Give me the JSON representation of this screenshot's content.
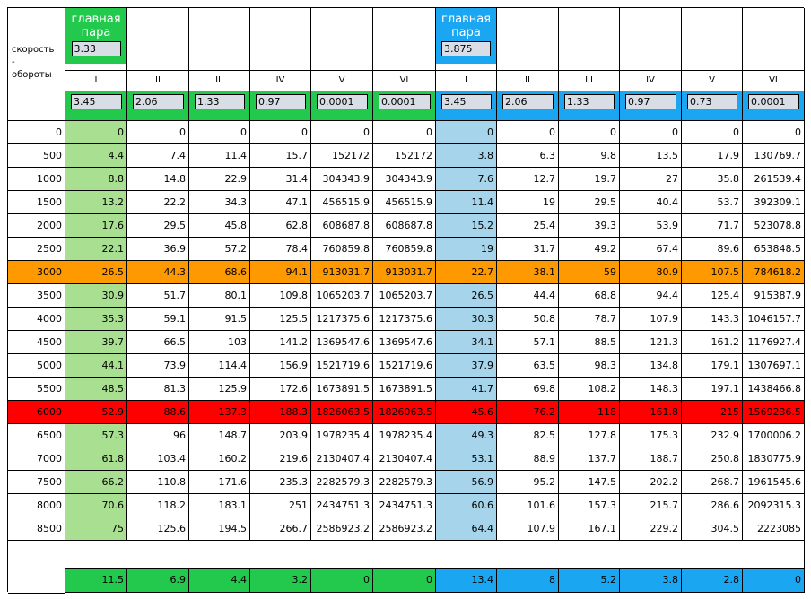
{
  "labels": {
    "speed": "скорость",
    "dash": "-",
    "rpm": "обороты"
  },
  "main_pair": [
    {
      "title": "главная пара",
      "value": "3.33"
    },
    {
      "title": "главная пара",
      "value": "3.875"
    }
  ],
  "gear_names": [
    "I",
    "II",
    "III",
    "IV",
    "V",
    "VI",
    "I",
    "II",
    "III",
    "IV",
    "V",
    "VI"
  ],
  "gear_ratios": [
    "3.45",
    "2.06",
    "1.33",
    "0.97",
    "0.0001",
    "0.0001",
    "3.45",
    "2.06",
    "1.33",
    "0.97",
    "0.73",
    "0.0001"
  ],
  "rpm_rows": [
    {
      "rpm": "0",
      "values": [
        "0",
        "0",
        "0",
        "0",
        "0",
        "0",
        "0",
        "0",
        "0",
        "0",
        "0",
        "0"
      ]
    },
    {
      "rpm": "500",
      "values": [
        "4.4",
        "7.4",
        "11.4",
        "15.7",
        "152172",
        "152172",
        "3.8",
        "6.3",
        "9.8",
        "13.5",
        "17.9",
        "130769.7"
      ]
    },
    {
      "rpm": "1000",
      "values": [
        "8.8",
        "14.8",
        "22.9",
        "31.4",
        "304343.9",
        "304343.9",
        "7.6",
        "12.7",
        "19.7",
        "27",
        "35.8",
        "261539.4"
      ]
    },
    {
      "rpm": "1500",
      "values": [
        "13.2",
        "22.2",
        "34.3",
        "47.1",
        "456515.9",
        "456515.9",
        "11.4",
        "19",
        "29.5",
        "40.4",
        "53.7",
        "392309.1"
      ]
    },
    {
      "rpm": "2000",
      "values": [
        "17.6",
        "29.5",
        "45.8",
        "62.8",
        "608687.8",
        "608687.8",
        "15.2",
        "25.4",
        "39.3",
        "53.9",
        "71.7",
        "523078.8"
      ]
    },
    {
      "rpm": "2500",
      "values": [
        "22.1",
        "36.9",
        "57.2",
        "78.4",
        "760859.8",
        "760859.8",
        "19",
        "31.7",
        "49.2",
        "67.4",
        "89.6",
        "653848.5"
      ]
    },
    {
      "rpm": "3000",
      "values": [
        "26.5",
        "44.3",
        "68.6",
        "94.1",
        "913031.7",
        "913031.7",
        "22.7",
        "38.1",
        "59",
        "80.9",
        "107.5",
        "784618.2"
      ]
    },
    {
      "rpm": "3500",
      "values": [
        "30.9",
        "51.7",
        "80.1",
        "109.8",
        "1065203.7",
        "1065203.7",
        "26.5",
        "44.4",
        "68.8",
        "94.4",
        "125.4",
        "915387.9"
      ]
    },
    {
      "rpm": "4000",
      "values": [
        "35.3",
        "59.1",
        "91.5",
        "125.5",
        "1217375.6",
        "1217375.6",
        "30.3",
        "50.8",
        "78.7",
        "107.9",
        "143.3",
        "1046157.7"
      ]
    },
    {
      "rpm": "4500",
      "values": [
        "39.7",
        "66.5",
        "103",
        "141.2",
        "1369547.6",
        "1369547.6",
        "34.1",
        "57.1",
        "88.5",
        "121.3",
        "161.2",
        "1176927.4"
      ]
    },
    {
      "rpm": "5000",
      "values": [
        "44.1",
        "73.9",
        "114.4",
        "156.9",
        "1521719.6",
        "1521719.6",
        "37.9",
        "63.5",
        "98.3",
        "134.8",
        "179.1",
        "1307697.1"
      ]
    },
    {
      "rpm": "5500",
      "values": [
        "48.5",
        "81.3",
        "125.9",
        "172.6",
        "1673891.5",
        "1673891.5",
        "41.7",
        "69.8",
        "108.2",
        "148.3",
        "197.1",
        "1438466.8"
      ]
    },
    {
      "rpm": "6000",
      "values": [
        "52.9",
        "88.6",
        "137.3",
        "188.3",
        "1826063.5",
        "1826063.5",
        "45.6",
        "76.2",
        "118",
        "161.8",
        "215",
        "1569236.5"
      ]
    },
    {
      "rpm": "6500",
      "values": [
        "57.3",
        "96",
        "148.7",
        "203.9",
        "1978235.4",
        "1978235.4",
        "49.3",
        "82.5",
        "127.8",
        "175.3",
        "232.9",
        "1700006.2"
      ]
    },
    {
      "rpm": "7000",
      "values": [
        "61.8",
        "103.4",
        "160.2",
        "219.6",
        "2130407.4",
        "2130407.4",
        "53.1",
        "88.9",
        "137.7",
        "188.7",
        "250.8",
        "1830775.9"
      ]
    },
    {
      "rpm": "7500",
      "values": [
        "66.2",
        "110.8",
        "171.6",
        "235.3",
        "2282579.3",
        "2282579.3",
        "56.9",
        "95.2",
        "147.5",
        "202.2",
        "268.7",
        "1961545.6"
      ]
    },
    {
      "rpm": "8000",
      "values": [
        "70.6",
        "118.2",
        "183.1",
        "251",
        "2434751.3",
        "2434751.3",
        "60.6",
        "101.6",
        "157.3",
        "215.7",
        "286.6",
        "2092315.3"
      ]
    },
    {
      "rpm": "8500",
      "values": [
        "75",
        "125.6",
        "194.5",
        "266.7",
        "2586923.2",
        "2586923.2",
        "64.4",
        "107.9",
        "167.1",
        "229.2",
        "304.5",
        "2223085"
      ]
    }
  ],
  "bottom_row": [
    "11.5",
    "6.9",
    "4.4",
    "3.2",
    "0",
    "0",
    "13.4",
    "8",
    "5.2",
    "3.8",
    "2.8",
    "0"
  ],
  "colors": {
    "green": "#22c94d",
    "blue": "#1ba6f2",
    "light_green": "#a9df90",
    "light_blue": "#a6d4ea",
    "orange_row": "#ff9900",
    "red_row": "#ff0000"
  },
  "highlights": {
    "orange_rpm": "3000",
    "red_rpm": "6000"
  }
}
